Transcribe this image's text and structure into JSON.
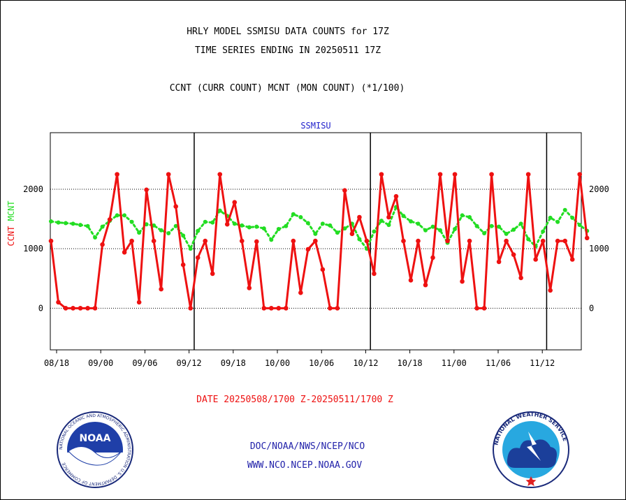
{
  "header": {
    "title_line1": "HRLY MODEL SSMISU DATA COUNTS for 17Z",
    "title_line2": "TIME SERIES ENDING IN 20250511 17Z",
    "subtitle": "CCNT (CURR COUNT) MCNT (MON COUNT) (*1/100)"
  },
  "footer": {
    "date_range": "DATE 20250508/1700 Z-20250511/1700 Z",
    "org": "DOC/NOAA/NWS/NCEP/NCO",
    "url": "WWW.NCO.NCEP.NOAA.GOV"
  },
  "logos": {
    "noaa": {
      "name": "noaa-logo",
      "text": "NOAA",
      "ring_text": "NATIONAL OCEANIC AND ATMOSPHERIC ADMINISTRATION U.S. DEPARTMENT OF COMMERCE"
    },
    "nws": {
      "name": "nws-logo",
      "ring_text": "NATIONAL WEATHER SERVICE"
    }
  },
  "colors": {
    "ccnt": "#ee1111",
    "mcnt": "#22dd22",
    "chart_title": "#2222cc",
    "date_text": "#ee1111",
    "footer_text": "#2222aa"
  },
  "chart_data": {
    "type": "line",
    "title": "SSMISU",
    "ylabel_left": [
      "CCNT",
      "MCNT"
    ],
    "ylim": [
      -700,
      2950
    ],
    "yticks": [
      0,
      1000,
      2000
    ],
    "ytick_labels": [
      "0",
      "1000",
      "2000"
    ],
    "xtick_labels": [
      "08/18",
      "09/00",
      "09/06",
      "09/12",
      "09/18",
      "10/00",
      "10/06",
      "10/12",
      "10/18",
      "11/00",
      "11/06",
      "11/12"
    ],
    "day_dividers_after_index": [
      19,
      43,
      67
    ],
    "series": [
      {
        "name": "CCNT",
        "values": [
          1130,
          100,
          0,
          0,
          0,
          0,
          0,
          1070,
          1490,
          2250,
          940,
          1130,
          100,
          1990,
          1130,
          320,
          2250,
          1710,
          730,
          0,
          850,
          1130,
          580,
          2250,
          1410,
          1780,
          1130,
          340,
          1120,
          0,
          0,
          0,
          0,
          1130,
          260,
          990,
          1130,
          650,
          0,
          0,
          1980,
          1250,
          1530,
          1130,
          580,
          2250,
          1530,
          1880,
          1130,
          470,
          1130,
          390,
          850,
          2250,
          1130,
          2250,
          450,
          1130,
          0,
          0,
          2250,
          780,
          1130,
          900,
          510,
          2250,
          820,
          1130,
          300,
          1130,
          1130,
          820,
          2250,
          1180
        ]
      },
      {
        "name": "MCNT",
        "values": [
          1460,
          1440,
          1430,
          1420,
          1400,
          1380,
          1190,
          1370,
          1470,
          1560,
          1560,
          1450,
          1270,
          1410,
          1390,
          1310,
          1260,
          1380,
          1220,
          1000,
          1300,
          1450,
          1440,
          1640,
          1550,
          1420,
          1390,
          1360,
          1370,
          1340,
          1150,
          1330,
          1380,
          1580,
          1530,
          1430,
          1250,
          1420,
          1390,
          1270,
          1340,
          1420,
          1160,
          1000,
          1290,
          1470,
          1400,
          1700,
          1550,
          1460,
          1420,
          1310,
          1370,
          1310,
          1100,
          1330,
          1560,
          1530,
          1380,
          1260,
          1380,
          1370,
          1250,
          1320,
          1420,
          1160,
          1040,
          1290,
          1520,
          1450,
          1650,
          1520,
          1400,
          1300
        ]
      }
    ]
  }
}
